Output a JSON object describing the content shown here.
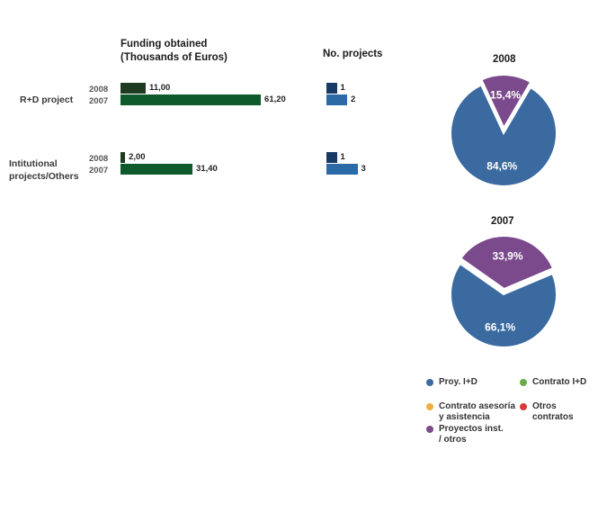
{
  "chart_data": [
    {
      "type": "bar",
      "title": "Funding obtained\n(Thousands of Euros)",
      "categories": [
        "R+D project",
        "Intitutional\nprojects/Others"
      ],
      "series": [
        {
          "name": "2008",
          "values": [
            11.0,
            2.0
          ],
          "labels": [
            "11,00",
            "2,00"
          ]
        },
        {
          "name": "2007",
          "values": [
            61.2,
            31.4
          ],
          "labels": [
            "61,20",
            "31,40"
          ]
        }
      ],
      "colors": {
        "2008": "#1e3b22",
        "2007": "#0e5a2c"
      }
    },
    {
      "type": "bar",
      "title": "No. projects",
      "categories": [
        "R+D project",
        "Intitutional\nprojects/Others"
      ],
      "series": [
        {
          "name": "2008",
          "values": [
            1,
            1
          ],
          "labels": [
            "1",
            "1"
          ]
        },
        {
          "name": "2007",
          "values": [
            2,
            3
          ],
          "labels": [
            "2",
            "3"
          ]
        }
      ],
      "colors": {
        "2008": "#173a66",
        "2007": "#2b6aa6"
      }
    },
    {
      "type": "pie",
      "title": "2008",
      "slices": [
        {
          "label": "Proy. I+D",
          "value": 84.6,
          "text": "84,6%",
          "color": "#3a6aa0"
        },
        {
          "label": "Proyectos inst. / otros",
          "value": 15.4,
          "text": "15,4%",
          "color": "#7b4a8c"
        }
      ]
    },
    {
      "type": "pie",
      "title": "2007",
      "slices": [
        {
          "label": "Proy. I+D",
          "value": 66.1,
          "text": "66,1%",
          "color": "#3a6aa0"
        },
        {
          "label": "Proyectos inst. / otros",
          "value": 33.9,
          "text": "33,9%",
          "color": "#7b4a8c"
        }
      ]
    }
  ],
  "legend": [
    {
      "label": "Proy. I+D",
      "color": "#3a6aa0"
    },
    {
      "label": "Contrato I+D",
      "color": "#6aaa4a"
    },
    {
      "label": "Contrato asesoría\ny asistencia",
      "color": "#f0b040"
    },
    {
      "label": "Otros\ncontratos",
      "color": "#d83a3a"
    },
    {
      "label": "Proyectos inst.\n/ otros",
      "color": "#7b4a8c"
    }
  ]
}
